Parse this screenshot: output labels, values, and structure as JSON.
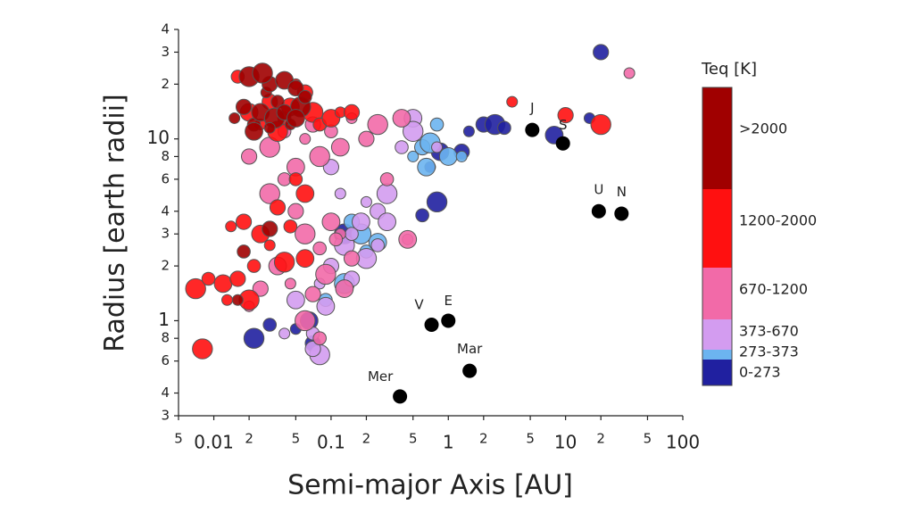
{
  "chart_data": {
    "type": "scatter",
    "x_label": "Semi-major Axis [AU]",
    "y_label": "Radius [earth radii]",
    "legend_title": "Teq [K]",
    "log_x": true,
    "log_y": true,
    "xlim": [
      0.005,
      100
    ],
    "ylim": [
      0.3,
      40
    ],
    "xticks": [
      {
        "value": 0.005,
        "label": "5"
      },
      0.01,
      {
        "value": 0.02,
        "label": "2"
      },
      {
        "value": 0.05,
        "label": "5"
      },
      0.1,
      {
        "value": 0.2,
        "label": "2"
      },
      {
        "value": 0.5,
        "label": "5"
      },
      1,
      2,
      5,
      10,
      {
        "value": 20,
        "label": "2"
      },
      {
        "value": 50,
        "label": "5"
      },
      100
    ],
    "yticks": [
      {
        "value": 0.3,
        "label": "3"
      },
      {
        "value": 0.4,
        "label": "4"
      },
      {
        "value": 0.6,
        "label": "6"
      },
      {
        "value": 0.8,
        "label": "8"
      },
      1,
      2,
      3,
      4,
      6,
      8,
      10,
      {
        "value": 20,
        "label": "2"
      },
      {
        "value": 30,
        "label": "3"
      },
      {
        "value": 40,
        "label": "4"
      }
    ],
    "series": [
      {
        "name": ">2000",
        "color": "#a00000",
        "x": [
          0.015,
          0.018,
          0.02,
          0.022,
          0.025,
          0.028,
          0.03,
          0.033,
          0.035,
          0.04,
          0.045,
          0.05,
          0.055,
          0.06,
          0.022,
          0.03,
          0.04,
          0.026,
          0.018,
          0.05,
          0.016,
          0.03
        ],
        "values": [
          13,
          15,
          22,
          12,
          14,
          18,
          20,
          13,
          16,
          21,
          12,
          19,
          15,
          17,
          11,
          11.5,
          14,
          23,
          2.4,
          13,
          1.3,
          3.2
        ]
      },
      {
        "name": "1200-2000",
        "color": "#ff1010",
        "x": [
          0.016,
          0.02,
          0.025,
          0.03,
          0.035,
          0.04,
          0.045,
          0.05,
          0.06,
          0.07,
          0.08,
          0.1,
          0.12,
          0.15,
          0.007,
          0.009,
          0.012,
          0.014,
          0.018,
          0.02,
          0.022,
          0.025,
          0.03,
          0.035,
          0.04,
          0.05,
          0.06,
          0.013,
          0.016,
          0.008,
          0.045,
          0.06,
          3.5,
          10,
          20
        ],
        "values": [
          22,
          14,
          12,
          16,
          11,
          13,
          15,
          20,
          18,
          14,
          12,
          13,
          14,
          14,
          1.5,
          1.7,
          1.6,
          3.3,
          3.5,
          1.3,
          2.0,
          3.0,
          2.6,
          4.2,
          2.1,
          6,
          5,
          1.3,
          1.7,
          0.7,
          3.3,
          2.2,
          16,
          13.5,
          12
        ]
      },
      {
        "name": "670-1200",
        "color": "#f26aa8",
        "x": [
          0.02,
          0.03,
          0.04,
          0.05,
          0.06,
          0.07,
          0.08,
          0.1,
          0.12,
          0.15,
          0.2,
          0.25,
          0.3,
          0.4,
          0.45,
          0.05,
          0.06,
          0.08,
          0.1,
          0.12,
          0.15,
          0.03,
          0.04,
          0.035,
          0.045,
          0.07,
          0.09,
          0.11,
          0.45,
          0.02,
          0.025,
          0.06,
          0.08,
          0.13,
          35
        ],
        "values": [
          8,
          9,
          11,
          7,
          10,
          12,
          8,
          11,
          9,
          13,
          10,
          12,
          6,
          13,
          2.8,
          4,
          3,
          2.5,
          3.5,
          3,
          2.2,
          5,
          6,
          2,
          1.6,
          1.4,
          1.8,
          2.8,
          2.8,
          1.2,
          1.5,
          1.0,
          0.8,
          1.5,
          23
        ]
      },
      {
        "name": "373-670",
        "color": "#d39cf0",
        "x": [
          0.05,
          0.08,
          0.1,
          0.13,
          0.15,
          0.18,
          0.2,
          0.25,
          0.3,
          0.4,
          0.5,
          0.8,
          0.15,
          0.2,
          0.25,
          0.3,
          0.12,
          0.1,
          0.08,
          0.07,
          0.09,
          0.04,
          0.07,
          0.5
        ],
        "values": [
          1.3,
          1.6,
          2.0,
          2.6,
          3.0,
          3.5,
          4.5,
          4,
          5,
          9,
          13,
          9,
          1.7,
          2.2,
          2.6,
          3.5,
          5,
          7,
          0.65,
          0.85,
          1.2,
          0.85,
          0.7,
          11
        ]
      },
      {
        "name": "273-373",
        "color": "#6cb4f0",
        "x": [
          0.18,
          0.2,
          0.25,
          0.5,
          0.6,
          0.7,
          0.8,
          1.0,
          1.3,
          0.15,
          0.13,
          0.09,
          0.65
        ],
        "values": [
          3.0,
          2.4,
          2.7,
          8,
          9,
          9.5,
          12,
          8,
          8,
          3.5,
          1.6,
          1.3,
          7
        ]
      },
      {
        "name": "0-273",
        "color": "#2020a0",
        "x": [
          1.5,
          2.0,
          2.5,
          3.0,
          8,
          16,
          20,
          0.8,
          0.6,
          0.85,
          0.05,
          0.07,
          0.022,
          0.03,
          0.065,
          0.7,
          1.3,
          0.13
        ],
        "values": [
          11,
          12,
          12,
          11.5,
          10.5,
          13,
          30,
          4.5,
          3.8,
          8.5,
          0.9,
          0.75,
          0.8,
          0.95,
          1.0,
          7,
          8.5,
          3.0
        ]
      }
    ],
    "annotations": [
      {
        "label": "Mer",
        "x": 0.387,
        "y": 0.383
      },
      {
        "label": "V",
        "x": 0.72,
        "y": 0.95
      },
      {
        "label": "E",
        "x": 1,
        "y": 1
      },
      {
        "label": "Mar",
        "x": 1.52,
        "y": 0.53
      },
      {
        "label": "J",
        "x": 5.2,
        "y": 11.2
      },
      {
        "label": "S",
        "x": 9.5,
        "y": 9.45
      },
      {
        "label": "U",
        "x": 19.2,
        "y": 4.0
      },
      {
        "label": "N",
        "x": 30,
        "y": 3.88
      }
    ],
    "annotation_color": "#000000"
  }
}
